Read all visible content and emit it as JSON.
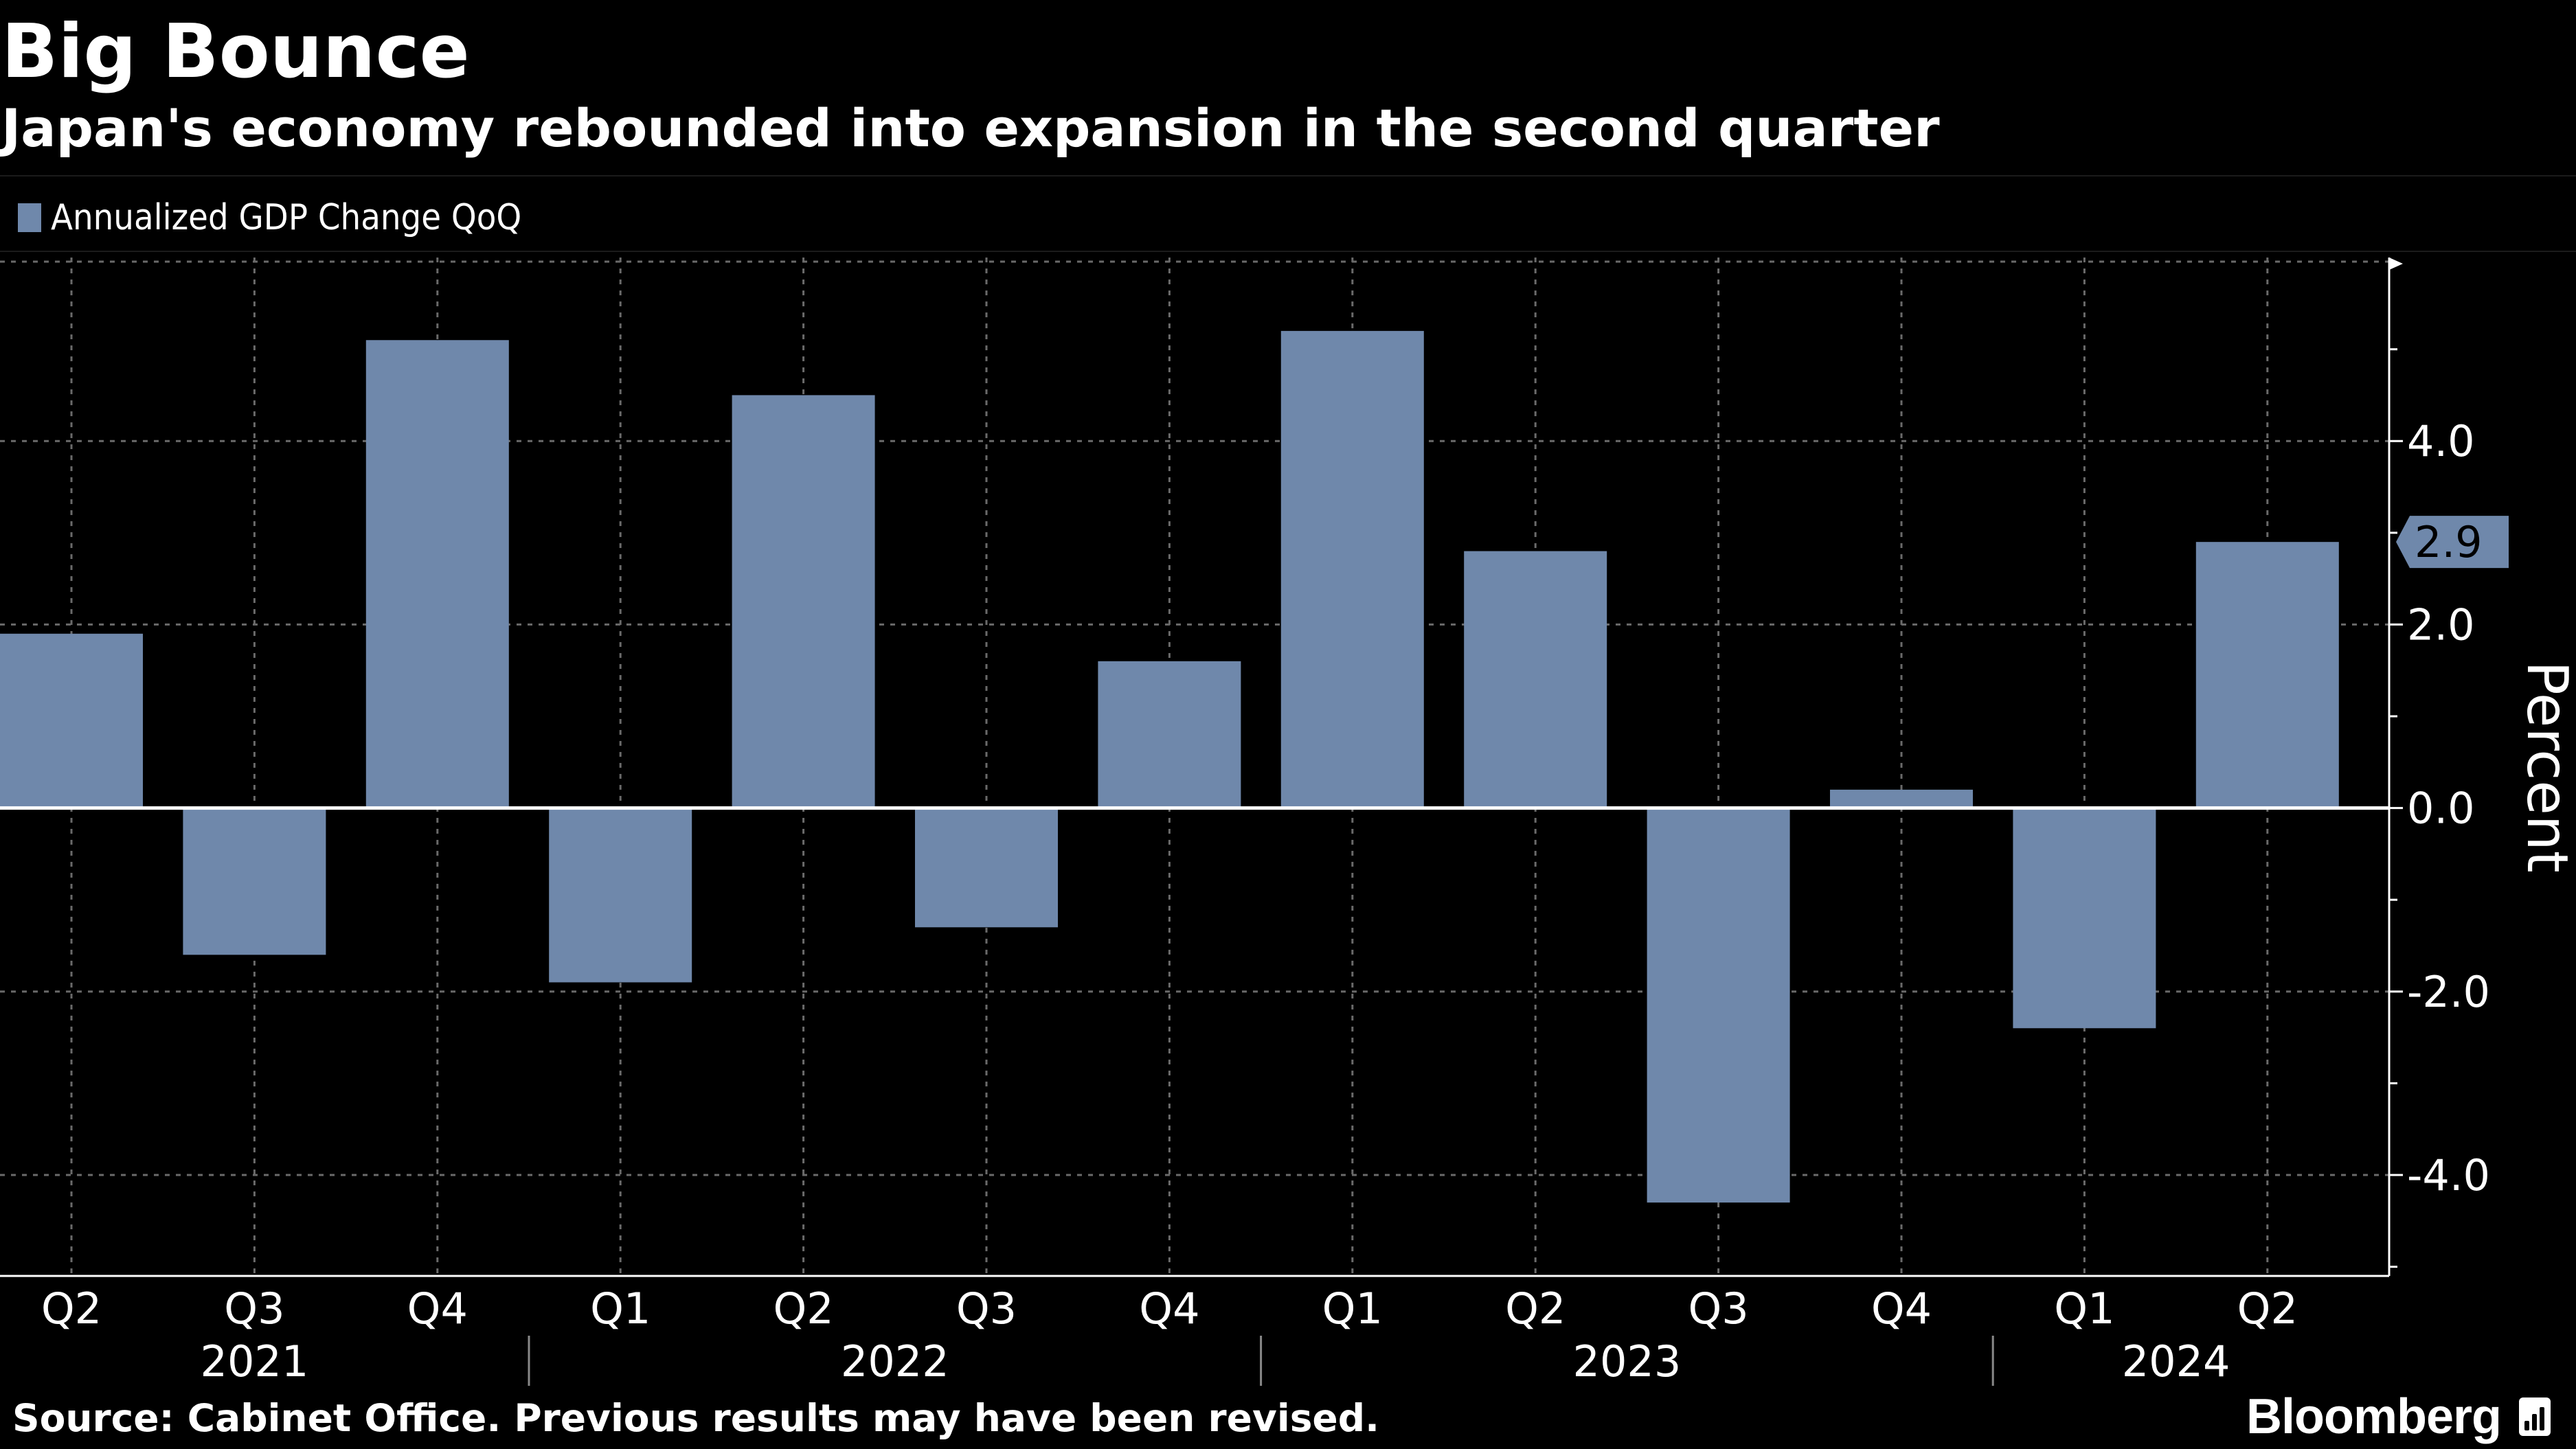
{
  "header": {
    "title": "Big Bounce",
    "subtitle": "Japan's economy rebounded into expansion in the second quarter"
  },
  "legend": {
    "label": "Annualized GDP Change QoQ"
  },
  "footer": {
    "source": "Source: Cabinet Office. Previous results may have been revised.",
    "brand": "Bloomberg"
  },
  "colors": {
    "bar": "#6f88ab",
    "background": "#000000",
    "text": "#ffffff",
    "grid": "#6a6a6a"
  },
  "chart_data": {
    "type": "bar",
    "title": "Big Bounce",
    "subtitle": "Japan's economy rebounded into expansion in the second quarter",
    "ylabel": "Percent",
    "xlabel": "",
    "categories": [
      "Q2",
      "Q3",
      "Q4",
      "Q1",
      "Q2",
      "Q3",
      "Q4",
      "Q1",
      "Q2",
      "Q3",
      "Q4",
      "Q1",
      "Q2"
    ],
    "year_groups": [
      {
        "label": "2021",
        "start": 0,
        "end": 2
      },
      {
        "label": "2022",
        "start": 3,
        "end": 6
      },
      {
        "label": "2023",
        "start": 7,
        "end": 10
      },
      {
        "label": "2024",
        "start": 11,
        "end": 12
      }
    ],
    "series": [
      {
        "name": "Annualized GDP Change QoQ",
        "values": [
          1.9,
          -1.6,
          5.1,
          -1.9,
          4.5,
          -1.3,
          1.6,
          5.2,
          2.8,
          -4.3,
          0.2,
          -2.4,
          2.9
        ]
      }
    ],
    "ylim": [
      -5.1,
      6.0
    ],
    "yticks": [
      -4.0,
      -2.0,
      0.0,
      2.0,
      4.0
    ],
    "ytick_labels": [
      "-4.0",
      "-2.0",
      "0.0",
      "2.0",
      "4.0"
    ],
    "last_value_label": "2.9",
    "grid": true,
    "legend_position": "top-left"
  }
}
